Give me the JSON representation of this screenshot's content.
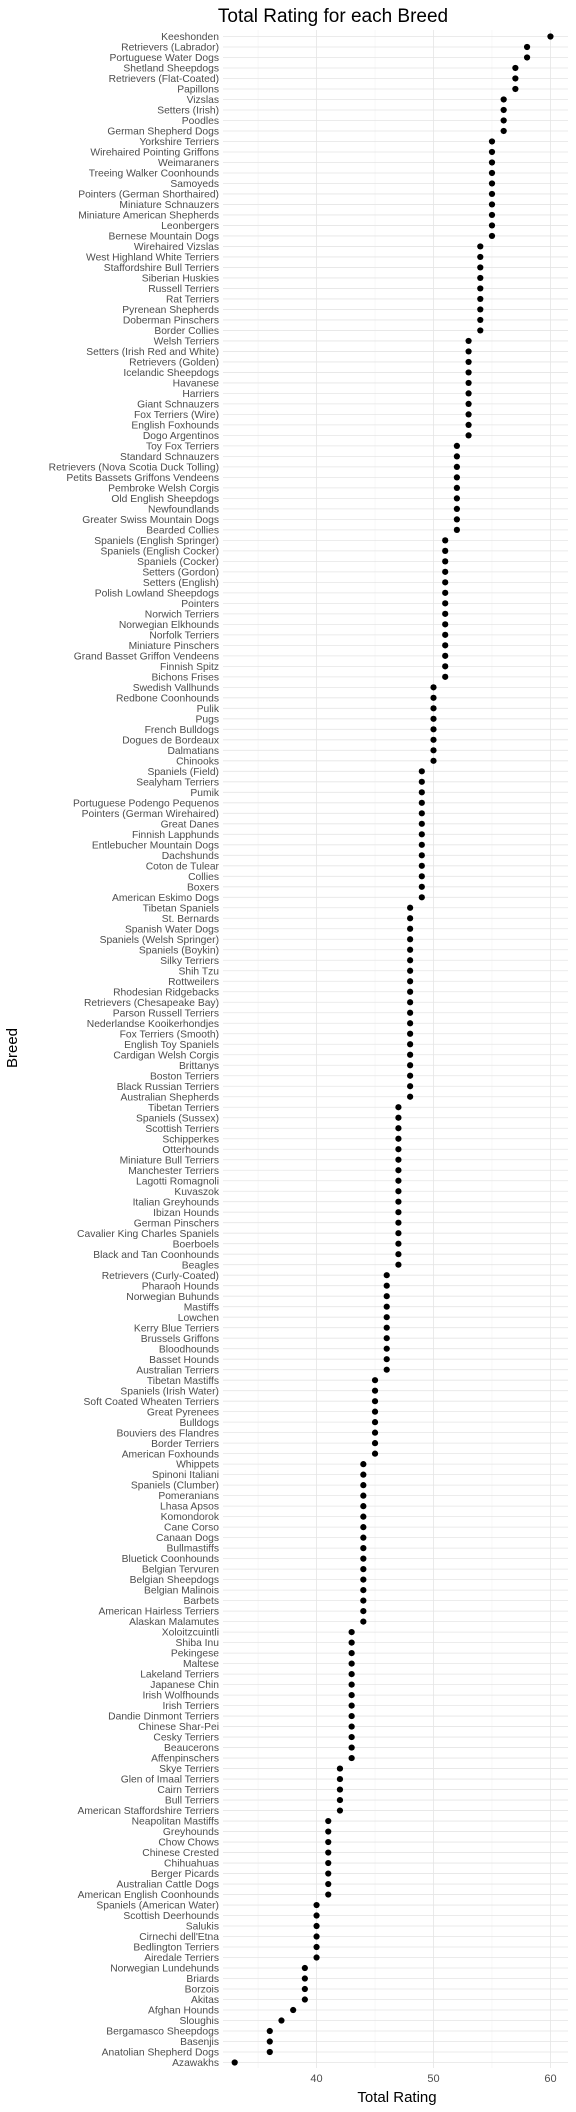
{
  "chart_data": {
    "type": "scatter",
    "title": "Total Rating for each Breed",
    "xlabel": "Total Rating",
    "ylabel": "Breed",
    "xlim": [
      32,
      61.5
    ],
    "x_ticks": [
      40,
      50,
      60
    ],
    "grid": true,
    "point_color": "#000000",
    "categories": [
      "Keeshonden",
      "Retrievers (Labrador)",
      "Portuguese Water Dogs",
      "Shetland Sheepdogs",
      "Retrievers (Flat-Coated)",
      "Papillons",
      "Vizslas",
      "Setters (Irish)",
      "Poodles",
      "German Shepherd Dogs",
      "Yorkshire Terriers",
      "Wirehaired Pointing Griffons",
      "Weimaraners",
      "Treeing Walker Coonhounds",
      "Samoyeds",
      "Pointers (German Shorthaired)",
      "Miniature Schnauzers",
      "Miniature American Shepherds",
      "Leonbergers",
      "Bernese Mountain Dogs",
      "Wirehaired Vizslas",
      "West Highland White Terriers",
      "Staffordshire Bull Terriers",
      "Siberian Huskies",
      "Russell Terriers",
      "Rat Terriers",
      "Pyrenean Shepherds",
      "Doberman Pinschers",
      "Border Collies",
      "Welsh Terriers",
      "Setters (Irish Red and White)",
      "Retrievers (Golden)",
      "Icelandic Sheepdogs",
      "Havanese",
      "Harriers",
      "Giant Schnauzers",
      "Fox Terriers (Wire)",
      "English Foxhounds",
      "Dogo Argentinos",
      "Toy Fox Terriers",
      "Standard Schnauzers",
      "Retrievers (Nova Scotia Duck Tolling)",
      "Petits Bassets Griffons Vendeens",
      "Pembroke Welsh Corgis",
      "Old English Sheepdogs",
      "Newfoundlands",
      "Greater Swiss Mountain Dogs",
      "Bearded Collies",
      "Spaniels (English Springer)",
      "Spaniels (English Cocker)",
      "Spaniels (Cocker)",
      "Setters (Gordon)",
      "Setters (English)",
      "Polish Lowland Sheepdogs",
      "Pointers",
      "Norwich Terriers",
      "Norwegian Elkhounds",
      "Norfolk Terriers",
      "Miniature Pinschers",
      "Grand Basset Griffon Vendeens",
      "Finnish Spitz",
      "Bichons Frises",
      "Swedish Vallhunds",
      "Redbone Coonhounds",
      "Pulik",
      "Pugs",
      "French Bulldogs",
      "Dogues de Bordeaux",
      "Dalmatians",
      "Chinooks",
      "Spaniels (Field)",
      "Sealyham Terriers",
      "Pumik",
      "Portuguese Podengo Pequenos",
      "Pointers (German Wirehaired)",
      "Great Danes",
      "Finnish Lapphunds",
      "Entlebucher Mountain Dogs",
      "Dachshunds",
      "Coton de Tulear",
      "Collies",
      "Boxers",
      "American Eskimo Dogs",
      "Tibetan Spaniels",
      "St. Bernards",
      "Spanish Water Dogs",
      "Spaniels (Welsh Springer)",
      "Spaniels (Boykin)",
      "Silky Terriers",
      "Shih Tzu",
      "Rottweilers",
      "Rhodesian Ridgebacks",
      "Retrievers (Chesapeake Bay)",
      "Parson Russell Terriers",
      "Nederlandse Kooikerhondjes",
      "Fox Terriers (Smooth)",
      "English Toy Spaniels",
      "Cardigan Welsh Corgis",
      "Brittanys",
      "Boston Terriers",
      "Black Russian Terriers",
      "Australian Shepherds",
      "Tibetan Terriers",
      "Spaniels (Sussex)",
      "Scottish Terriers",
      "Schipperkes",
      "Otterhounds",
      "Miniature Bull Terriers",
      "Manchester Terriers",
      "Lagotti Romagnoli",
      "Kuvaszok",
      "Italian Greyhounds",
      "Ibizan Hounds",
      "German Pinschers",
      "Cavalier King Charles Spaniels",
      "Boerboels",
      "Black and Tan Coonhounds",
      "Beagles",
      "Retrievers (Curly-Coated)",
      "Pharaoh Hounds",
      "Norwegian Buhunds",
      "Mastiffs",
      "Lowchen",
      "Kerry Blue Terriers",
      "Brussels Griffons",
      "Bloodhounds",
      "Basset Hounds",
      "Australian Terriers",
      "Tibetan Mastiffs",
      "Spaniels (Irish Water)",
      "Soft Coated Wheaten Terriers",
      "Great Pyrenees",
      "Bulldogs",
      "Bouviers des Flandres",
      "Border Terriers",
      "American Foxhounds",
      "Whippets",
      "Spinoni Italiani",
      "Spaniels (Clumber)",
      "Pomeranians",
      "Lhasa Apsos",
      "Komondorok",
      "Cane Corso",
      "Canaan Dogs",
      "Bullmastiffs",
      "Bluetick Coonhounds",
      "Belgian Tervuren",
      "Belgian Sheepdogs",
      "Belgian Malinois",
      "Barbets",
      "American Hairless Terriers",
      "Alaskan Malamutes",
      "Xoloitzcuintli",
      "Shiba Inu",
      "Pekingese",
      "Maltese",
      "Lakeland Terriers",
      "Japanese Chin",
      "Irish Wolfhounds",
      "Irish Terriers",
      "Dandie Dinmont Terriers",
      "Chinese Shar-Pei",
      "Cesky Terriers",
      "Beaucerons",
      "Affenpinschers",
      "Skye Terriers",
      "Glen of Imaal Terriers",
      "Cairn Terriers",
      "Bull Terriers",
      "American Staffordshire Terriers",
      "Neapolitan Mastiffs",
      "Greyhounds",
      "Chow Chows",
      "Chinese Crested",
      "Chihuahuas",
      "Berger Picards",
      "Australian Cattle Dogs",
      "American English Coonhounds",
      "Spaniels (American Water)",
      "Scottish Deerhounds",
      "Salukis",
      "Cirnechi dell'Etna",
      "Bedlington Terriers",
      "Airedale Terriers",
      "Norwegian Lundehunds",
      "Briards",
      "Borzois",
      "Akitas",
      "Afghan Hounds",
      "Sloughis",
      "Bergamasco Sheepdogs",
      "Basenjis",
      "Anatolian Shepherd Dogs",
      "Azawakhs"
    ],
    "values": [
      60,
      58,
      58,
      57,
      57,
      57,
      56,
      56,
      56,
      56,
      55,
      55,
      55,
      55,
      55,
      55,
      55,
      55,
      55,
      55,
      54,
      54,
      54,
      54,
      54,
      54,
      54,
      54,
      54,
      53,
      53,
      53,
      53,
      53,
      53,
      53,
      53,
      53,
      53,
      52,
      52,
      52,
      52,
      52,
      52,
      52,
      52,
      52,
      51,
      51,
      51,
      51,
      51,
      51,
      51,
      51,
      51,
      51,
      51,
      51,
      51,
      51,
      50,
      50,
      50,
      50,
      50,
      50,
      50,
      50,
      49,
      49,
      49,
      49,
      49,
      49,
      49,
      49,
      49,
      49,
      49,
      49,
      49,
      48,
      48,
      48,
      48,
      48,
      48,
      48,
      48,
      48,
      48,
      48,
      48,
      48,
      48,
      48,
      48,
      48,
      48,
      48,
      47,
      47,
      47,
      47,
      47,
      47,
      47,
      47,
      47,
      47,
      47,
      47,
      47,
      47,
      47,
      47,
      46,
      46,
      46,
      46,
      46,
      46,
      46,
      46,
      46,
      46,
      45,
      45,
      45,
      45,
      45,
      45,
      45,
      45,
      44,
      44,
      44,
      44,
      44,
      44,
      44,
      44,
      44,
      44,
      44,
      44,
      44,
      44,
      44,
      44,
      43,
      43,
      43,
      43,
      43,
      43,
      43,
      43,
      43,
      43,
      43,
      43,
      43,
      42,
      42,
      42,
      42,
      42,
      41,
      41,
      41,
      41,
      41,
      41,
      41,
      41,
      40,
      40,
      40,
      40,
      40,
      40,
      39,
      39,
      39,
      39,
      38,
      37,
      36,
      36,
      36,
      33
    ]
  }
}
